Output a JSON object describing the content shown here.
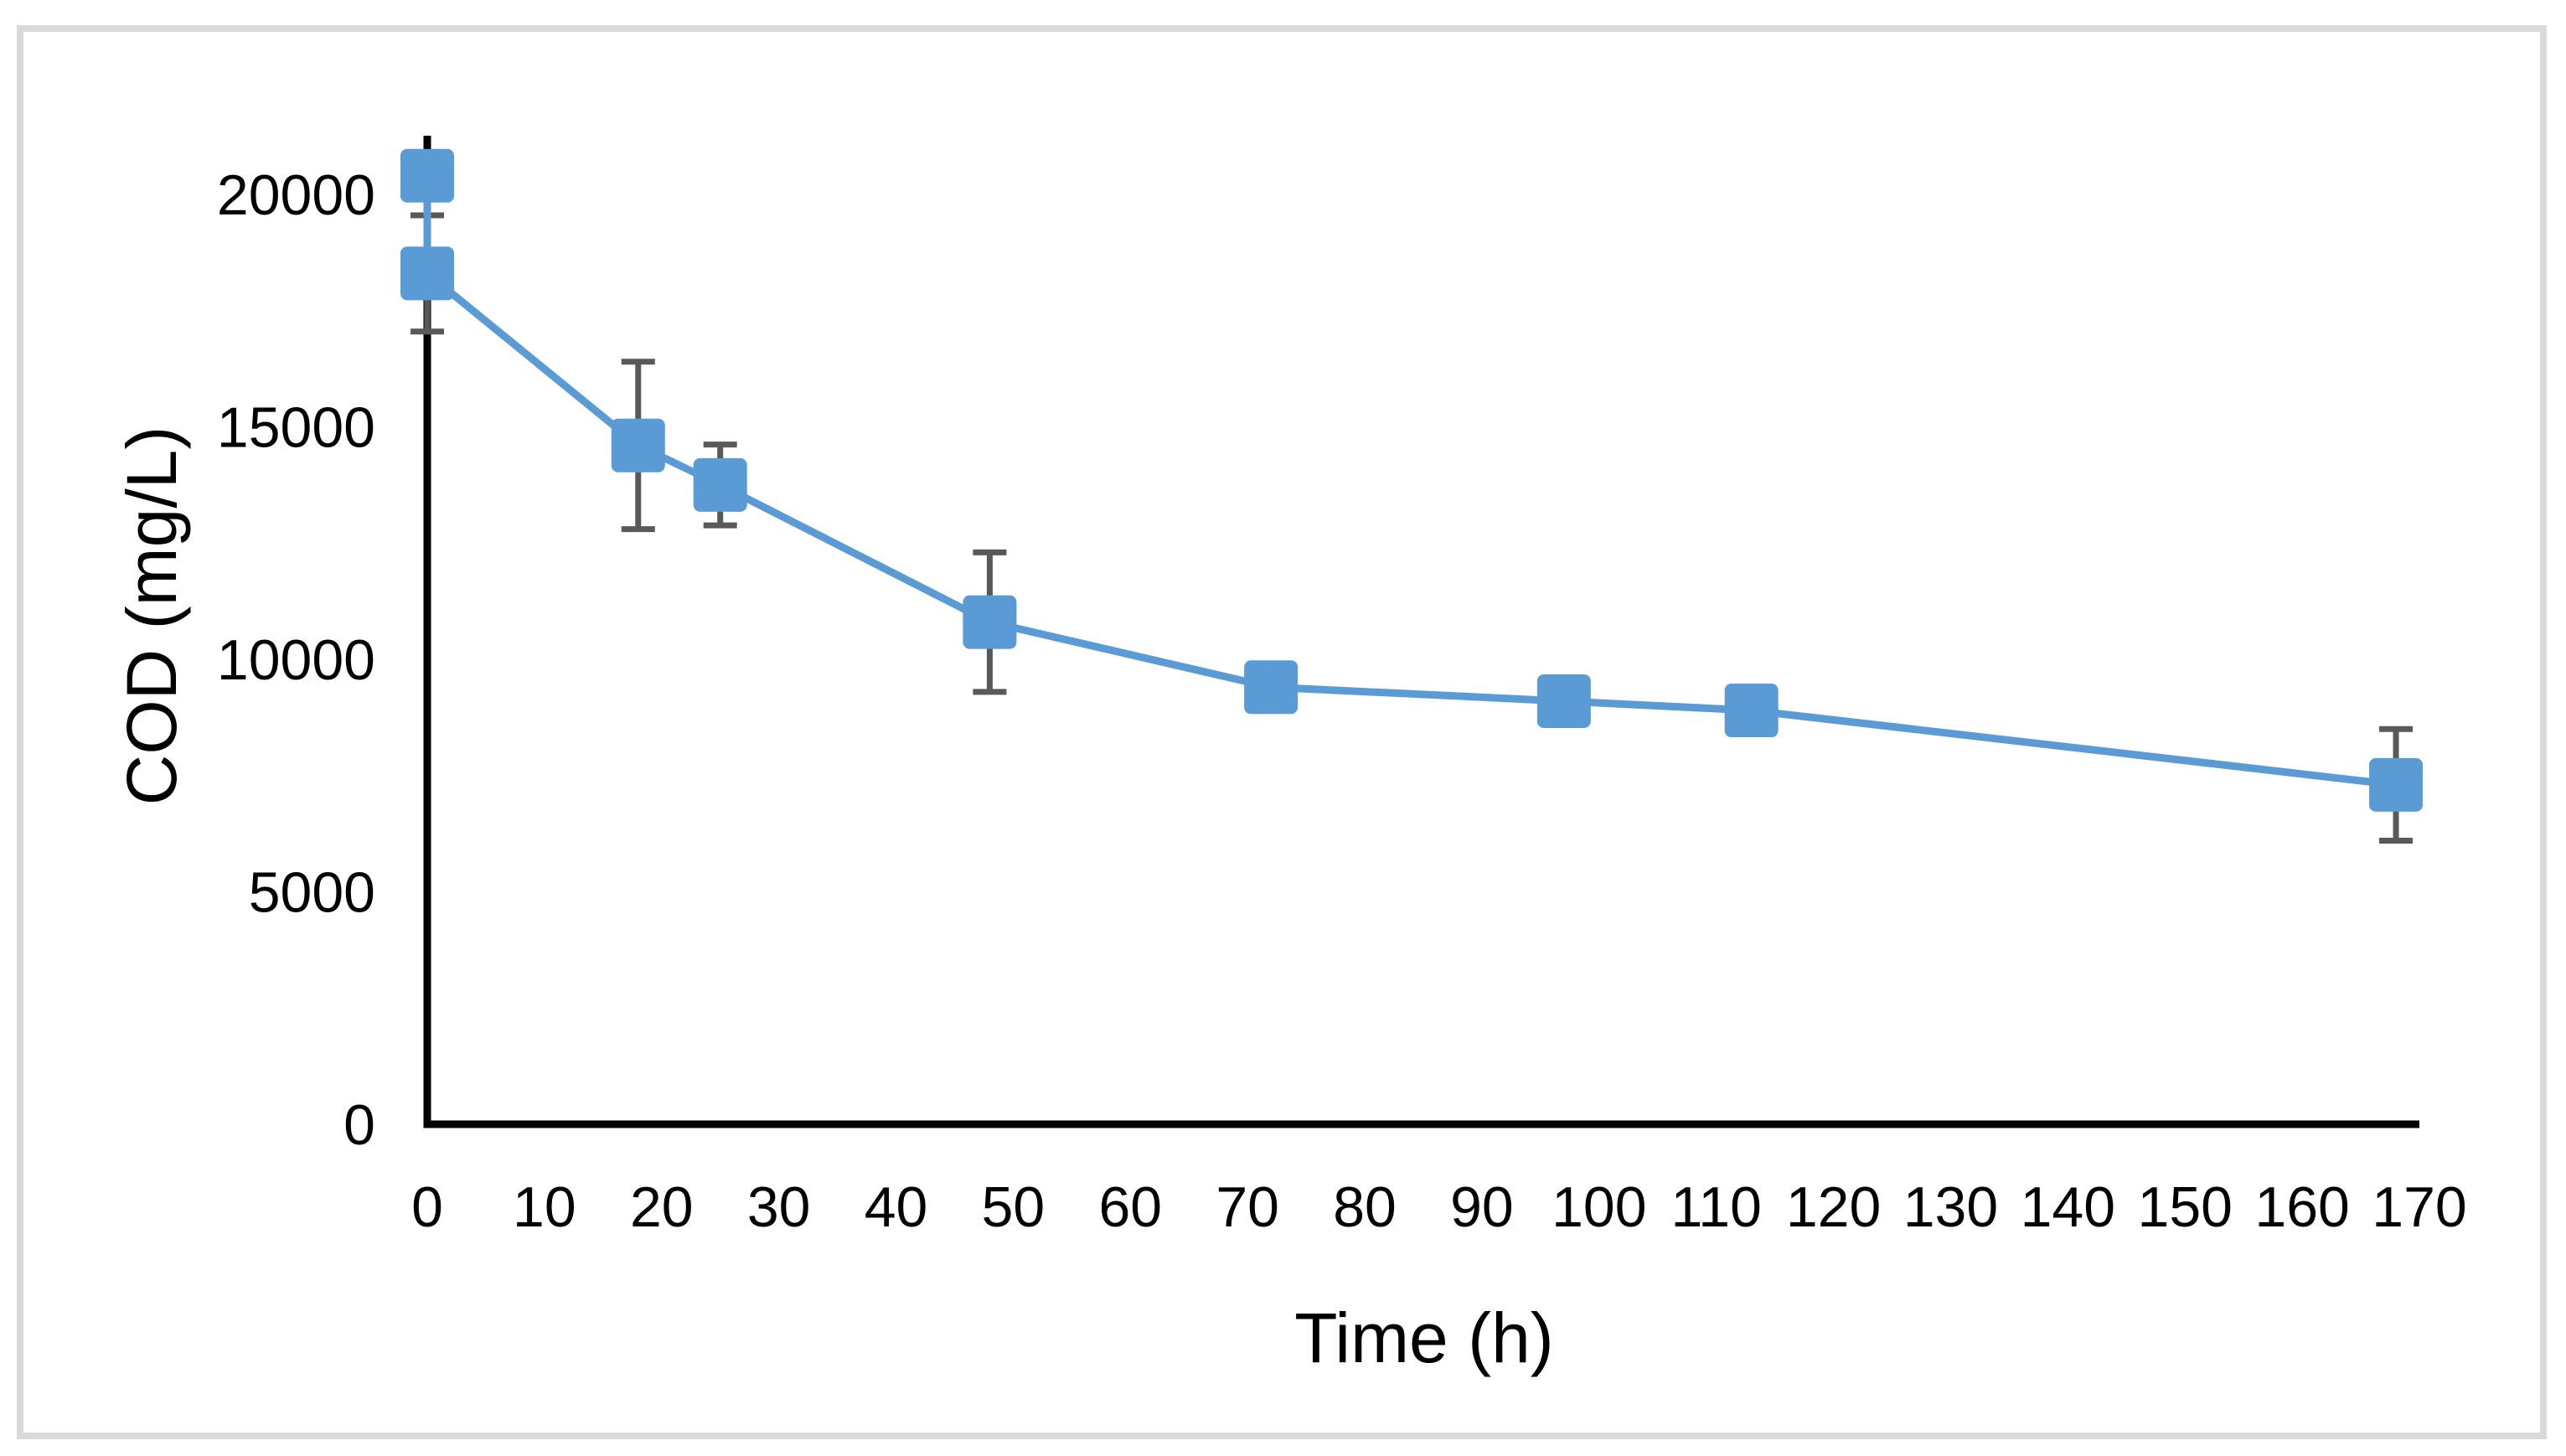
{
  "figure": {
    "background": "#FFFFFF",
    "frame_border_color": "#D9D9D9"
  },
  "chart_data": {
    "type": "line",
    "title": "",
    "xlabel": "Time (h)",
    "ylabel": "COD (mg/L)",
    "x": [
      0,
      0,
      18,
      25,
      48,
      72,
      97,
      113,
      168
    ],
    "y": [
      20400,
      18300,
      14600,
      13750,
      10800,
      9400,
      9100,
      8900,
      7300
    ],
    "y_error": [
      0,
      1250,
      1800,
      870,
      1500,
      0,
      0,
      0,
      1200
    ],
    "xlim": [
      0,
      170
    ],
    "ylim": [
      0,
      20000
    ],
    "x_ticks": [
      0,
      10,
      20,
      30,
      40,
      50,
      60,
      70,
      80,
      90,
      100,
      110,
      120,
      130,
      140,
      150,
      160,
      170
    ],
    "y_ticks": [
      0,
      5000,
      10000,
      15000,
      20000
    ],
    "grid": false,
    "legend": "none",
    "marker": "square",
    "colors": {
      "series": "#5B9BD5",
      "error_bars": "#595959",
      "axes": "#000000",
      "text": "#000000"
    }
  }
}
